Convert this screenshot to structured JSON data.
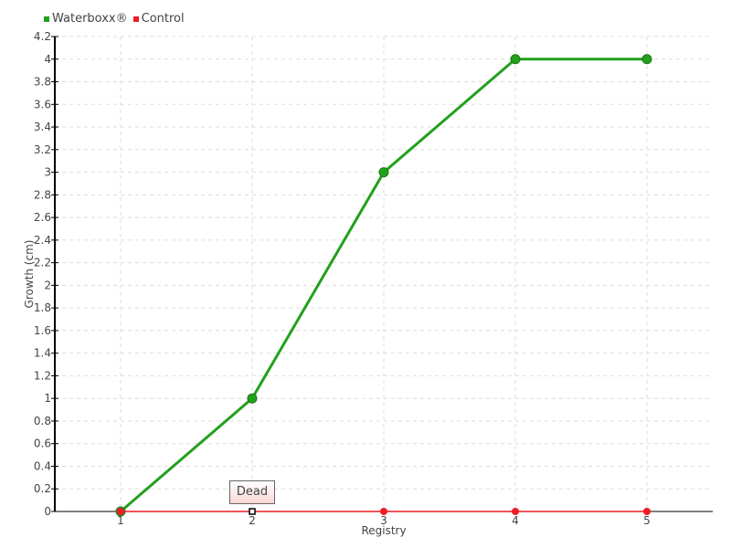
{
  "chart_data": {
    "type": "line",
    "categories": [
      "1",
      "2",
      "3",
      "4",
      "5"
    ],
    "xlabel": "Registry",
    "ylabel": "Growth (cm)",
    "ylim": [
      0,
      4.2
    ],
    "yticks": [
      "0",
      "0.2",
      "0.4",
      "0.6",
      "0.8",
      "1",
      "1.2",
      "1.4",
      "1.6",
      "1.8",
      "2",
      "2.2",
      "2.4",
      "2.6",
      "2.8",
      "3",
      "3.2",
      "3.4",
      "3.6",
      "3.8",
      "4",
      "4.2"
    ],
    "grid": true,
    "legend": "top-left",
    "series": [
      {
        "name": "Waterboxx®",
        "values": [
          0,
          1,
          3,
          4,
          4
        ],
        "color": "#23a01c"
      },
      {
        "name": "Control",
        "values": [
          0,
          0,
          0,
          0,
          0
        ],
        "color": "#ee1c25"
      }
    ],
    "annotations": [
      {
        "series": "Control",
        "x": "2",
        "text": "Dead"
      }
    ]
  }
}
